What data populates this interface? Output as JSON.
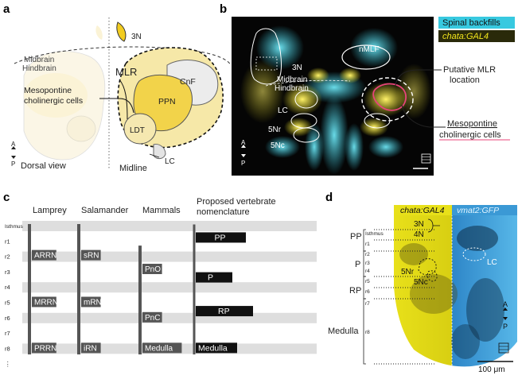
{
  "panels": {
    "a": "a",
    "b": "b",
    "c": "c",
    "d": "d"
  },
  "panel_a": {
    "midbrain": "Midbrain",
    "hindbrain": "Hindbrain",
    "mlr": "MLR",
    "cnf": "CnF",
    "ppn": "PPN",
    "ldt": "LDT",
    "n3": "3N",
    "lc": "LC",
    "meso_line1": "Mesopontine",
    "meso_line2": "cholinergic cells",
    "dorsal_view": "Dorsal view",
    "midline": "Midline",
    "axis_a": "A",
    "axis_p": "P"
  },
  "panel_b": {
    "legend_backfills": "Spinal backfills",
    "legend_gal4": "chata:GAL4",
    "n3": "3N",
    "midbrain": "Midbrain",
    "hindbrain": "Hindbrain",
    "lc": "LC",
    "nmlf": "nMLF",
    "n5nr": "5Nr",
    "n5nc": "5Nc",
    "putative_line1": "Putative MLR",
    "putative_line2": "location",
    "meso_line1": "Mesopontine",
    "meso_line2": "cholinergic cells",
    "axis_a": "A",
    "axis_p": "P",
    "colors": {
      "cyan": "#37c9e0",
      "yellow": "#f2e61c",
      "magenta": "#e8447a",
      "legend_yellow": "#f2e61c"
    }
  },
  "panel_c": {
    "headers": [
      "Lamprey",
      "Salamander",
      "Mammals",
      "Proposed vertebrate",
      "nomenclature"
    ],
    "rows": [
      "Isthmus",
      "r1",
      "r2",
      "r3",
      "r4",
      "r5",
      "r6",
      "r7",
      "r8",
      "⋮"
    ],
    "labels": {
      "arrn": "ARRN",
      "srn": "sRN",
      "mrrn": "MRRN",
      "mrn": "mRN",
      "prrn": "PRRN",
      "irn": "iRN",
      "pno": "PnO",
      "pnc": "PnC",
      "medulla_mammal": "Medulla",
      "pp": "PP",
      "p": "P",
      "rp": "RP",
      "medulla": "Medulla"
    }
  },
  "panel_d": {
    "legend_gal4": "chata:GAL4",
    "legend_vmat": "vmat2:GFP",
    "n3": "3N",
    "n4": "4N",
    "lc": "LC",
    "n5nr": "5Nr",
    "n5nc": "5Nc",
    "rows": [
      "Isthmus",
      "r1",
      "r2",
      "r3",
      "r4",
      "r5",
      "r6",
      "r7",
      "r8"
    ],
    "groups": [
      "PP",
      "P",
      "RP",
      "Medulla"
    ],
    "scale": "100 μm",
    "axis_a": "A",
    "axis_p": "P",
    "colors": {
      "yellow": "#ebe21a",
      "blue": "#2b9fd6"
    }
  }
}
